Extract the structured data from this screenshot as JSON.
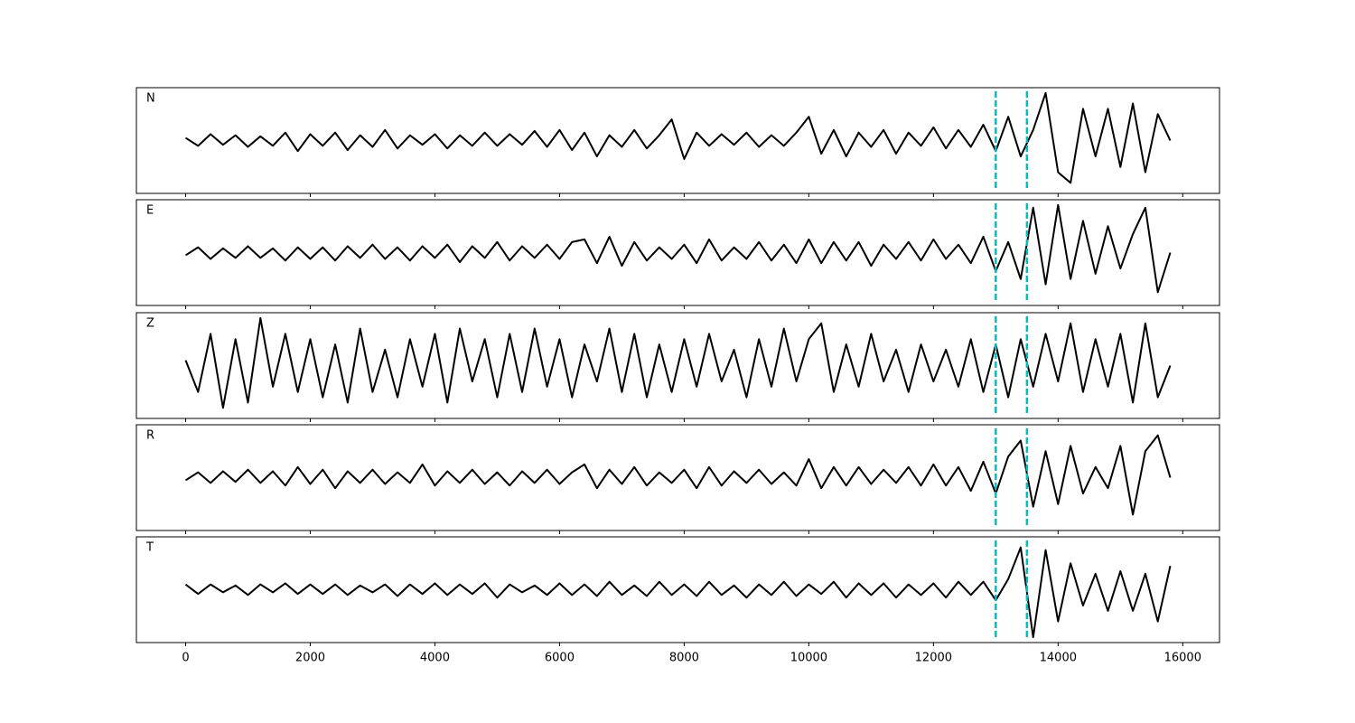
{
  "chart_data": [
    {
      "type": "line",
      "title": "N",
      "color": "#000000",
      "xlim": [
        -790,
        16590
      ],
      "ylim": [
        -1,
        1
      ],
      "vlines": [
        13000,
        13500
      ],
      "vline_color": "#00bfbf",
      "x": [
        0,
        200,
        400,
        600,
        800,
        1000,
        1200,
        1400,
        1600,
        1800,
        2000,
        2200,
        2400,
        2600,
        2800,
        3000,
        3200,
        3400,
        3600,
        3800,
        4000,
        4200,
        4400,
        4600,
        4800,
        5000,
        5200,
        5400,
        5600,
        5800,
        6000,
        6200,
        6400,
        6600,
        6800,
        7000,
        7200,
        7400,
        7600,
        7800,
        8000,
        8200,
        8400,
        8600,
        8800,
        9000,
        9200,
        9400,
        9600,
        9800,
        10000,
        10200,
        10400,
        10600,
        10800,
        11000,
        11200,
        11400,
        11600,
        11800,
        12000,
        12200,
        12400,
        12600,
        12800,
        13000,
        13200,
        13400,
        13600,
        13800,
        14000,
        14200,
        14400,
        14600,
        14800,
        15000,
        15200,
        15400,
        15600,
        15800
      ],
      "values": [
        0.05,
        -0.1,
        0.12,
        -0.08,
        0.1,
        -0.12,
        0.08,
        -0.1,
        0.15,
        -0.2,
        0.12,
        -0.1,
        0.15,
        -0.18,
        0.1,
        -0.12,
        0.2,
        -0.15,
        0.1,
        -0.08,
        0.12,
        -0.15,
        0.1,
        -0.1,
        0.15,
        -0.1,
        0.12,
        -0.08,
        0.18,
        -0.12,
        0.2,
        -0.18,
        0.15,
        -0.3,
        0.1,
        -0.12,
        0.2,
        -0.15,
        0.1,
        0.4,
        -0.35,
        0.15,
        -0.1,
        0.12,
        -0.08,
        0.15,
        -0.12,
        0.1,
        -0.1,
        0.15,
        0.45,
        -0.25,
        0.2,
        -0.3,
        0.15,
        -0.12,
        0.2,
        -0.25,
        0.15,
        -0.1,
        0.25,
        -0.15,
        0.2,
        -0.12,
        0.3,
        -0.2,
        0.45,
        -0.3,
        0.2,
        0.9,
        -0.6,
        -0.8,
        0.6,
        -0.3,
        0.6,
        -0.5,
        0.7,
        -0.6,
        0.5,
        0.0
      ]
    },
    {
      "type": "line",
      "title": "E",
      "color": "#000000",
      "xlim": [
        -790,
        16590
      ],
      "ylim": [
        -1,
        1
      ],
      "vlines": [
        13000,
        13500
      ],
      "vline_color": "#00bfbf",
      "x": [
        0,
        200,
        400,
        600,
        800,
        1000,
        1200,
        1400,
        1600,
        1800,
        2000,
        2200,
        2400,
        2600,
        2800,
        3000,
        3200,
        3400,
        3600,
        3800,
        4000,
        4200,
        4400,
        4600,
        4800,
        5000,
        5200,
        5400,
        5600,
        5800,
        6000,
        6200,
        6400,
        6600,
        6800,
        7000,
        7200,
        7400,
        7600,
        7800,
        8000,
        8200,
        8400,
        8600,
        8800,
        9000,
        9200,
        9400,
        9600,
        9800,
        10000,
        10200,
        10400,
        10600,
        10800,
        11000,
        11200,
        11400,
        11600,
        11800,
        12000,
        12200,
        12400,
        12600,
        12800,
        13000,
        13200,
        13400,
        13600,
        13800,
        14000,
        14200,
        14400,
        14600,
        14800,
        15000,
        15200,
        15400,
        15600,
        15800
      ],
      "values": [
        -0.05,
        0.1,
        -0.12,
        0.08,
        -0.1,
        0.12,
        -0.1,
        0.08,
        -0.15,
        0.1,
        -0.12,
        0.1,
        -0.15,
        0.12,
        -0.1,
        0.15,
        -0.12,
        0.1,
        -0.15,
        0.12,
        -0.1,
        0.15,
        -0.18,
        0.12,
        -0.1,
        0.2,
        -0.15,
        0.12,
        -0.1,
        0.15,
        -0.12,
        0.2,
        0.25,
        -0.2,
        0.3,
        -0.25,
        0.2,
        -0.15,
        0.1,
        -0.12,
        0.15,
        -0.2,
        0.25,
        -0.15,
        0.1,
        -0.12,
        0.2,
        -0.15,
        0.15,
        -0.2,
        0.25,
        -0.2,
        0.2,
        -0.15,
        0.2,
        -0.25,
        0.15,
        -0.12,
        0.2,
        -0.15,
        0.25,
        -0.12,
        0.15,
        -0.2,
        0.3,
        -0.35,
        0.2,
        -0.5,
        0.85,
        -0.6,
        0.9,
        -0.5,
        0.6,
        -0.4,
        0.5,
        -0.3,
        0.35,
        0.85,
        -0.75,
        0.0
      ]
    },
    {
      "type": "line",
      "title": "Z",
      "color": "#000000",
      "xlim": [
        -790,
        16590
      ],
      "ylim": [
        -1,
        1
      ],
      "vlines": [
        13000,
        13500
      ],
      "vline_color": "#00bfbf",
      "x": [
        0,
        200,
        400,
        600,
        800,
        1000,
        1200,
        1400,
        1600,
        1800,
        2000,
        2200,
        2400,
        2600,
        2800,
        3000,
        3200,
        3400,
        3600,
        3800,
        4000,
        4200,
        4400,
        4600,
        4800,
        5000,
        5200,
        5400,
        5600,
        5800,
        6000,
        6200,
        6400,
        6600,
        6800,
        7000,
        7200,
        7400,
        7600,
        7800,
        8000,
        8200,
        8400,
        8600,
        8800,
        9000,
        9200,
        9400,
        9600,
        9800,
        10000,
        10200,
        10400,
        10600,
        10800,
        11000,
        11200,
        11400,
        11600,
        11800,
        12000,
        12200,
        12400,
        12600,
        12800,
        13000,
        13200,
        13400,
        13600,
        13800,
        14000,
        14200,
        14400,
        14600,
        14800,
        15000,
        15200,
        15400,
        15600,
        15800
      ],
      "values": [
        0.1,
        -0.5,
        0.6,
        -0.8,
        0.5,
        -0.7,
        0.9,
        -0.4,
        0.6,
        -0.5,
        0.5,
        -0.6,
        0.4,
        -0.7,
        0.7,
        -0.5,
        0.3,
        -0.6,
        0.5,
        -0.4,
        0.6,
        -0.7,
        0.7,
        -0.3,
        0.5,
        -0.6,
        0.6,
        -0.5,
        0.7,
        -0.4,
        0.5,
        -0.6,
        0.4,
        -0.3,
        0.7,
        -0.5,
        0.6,
        -0.6,
        0.4,
        -0.5,
        0.5,
        -0.4,
        0.6,
        -0.3,
        0.3,
        -0.6,
        0.5,
        -0.4,
        0.7,
        -0.3,
        0.5,
        0.8,
        -0.5,
        0.4,
        -0.4,
        0.6,
        -0.3,
        0.3,
        -0.5,
        0.4,
        -0.3,
        0.3,
        -0.4,
        0.5,
        -0.5,
        0.4,
        -0.6,
        0.5,
        -0.4,
        0.6,
        -0.3,
        0.8,
        -0.5,
        0.5,
        -0.4,
        0.6,
        -0.7,
        0.8,
        -0.6,
        0.0
      ]
    },
    {
      "type": "line",
      "title": "R",
      "color": "#000000",
      "xlim": [
        -790,
        16590
      ],
      "ylim": [
        -1,
        1
      ],
      "vlines": [
        13000,
        13500
      ],
      "vline_color": "#00bfbf",
      "x": [
        0,
        200,
        400,
        600,
        800,
        1000,
        1200,
        1400,
        1600,
        1800,
        2000,
        2200,
        2400,
        2600,
        2800,
        3000,
        3200,
        3400,
        3600,
        3800,
        4000,
        4200,
        4400,
        4600,
        4800,
        5000,
        5200,
        5400,
        5600,
        5800,
        6000,
        6200,
        6400,
        6600,
        6800,
        7000,
        7200,
        7400,
        7600,
        7800,
        8000,
        8200,
        8400,
        8600,
        8800,
        9000,
        9200,
        9400,
        9600,
        9800,
        10000,
        10200,
        10400,
        10600,
        10800,
        11000,
        11200,
        11400,
        11600,
        11800,
        12000,
        12200,
        12400,
        12600,
        12800,
        13000,
        13200,
        13400,
        13600,
        13800,
        14000,
        14200,
        14400,
        14600,
        14800,
        15000,
        15200,
        15400,
        15600,
        15800
      ],
      "values": [
        -0.05,
        0.1,
        -0.1,
        0.12,
        -0.08,
        0.15,
        -0.1,
        0.12,
        -0.15,
        0.2,
        -0.12,
        0.15,
        -0.2,
        0.12,
        -0.1,
        0.15,
        -0.12,
        0.1,
        -0.1,
        0.25,
        -0.15,
        0.12,
        -0.1,
        0.15,
        -0.12,
        0.1,
        -0.15,
        0.12,
        -0.1,
        0.15,
        -0.12,
        0.1,
        0.25,
        -0.2,
        0.15,
        -0.12,
        0.2,
        -0.15,
        0.1,
        -0.1,
        0.15,
        -0.2,
        0.2,
        -0.15,
        0.12,
        -0.1,
        0.15,
        -0.12,
        0.1,
        -0.15,
        0.35,
        -0.2,
        0.2,
        -0.15,
        0.2,
        -0.12,
        0.15,
        -0.1,
        0.2,
        -0.15,
        0.25,
        -0.15,
        0.2,
        -0.25,
        0.3,
        -0.3,
        0.4,
        0.7,
        -0.55,
        0.5,
        -0.5,
        0.6,
        -0.3,
        0.2,
        -0.2,
        0.6,
        -0.7,
        0.5,
        0.8,
        0.0
      ]
    },
    {
      "type": "line",
      "title": "T",
      "color": "#000000",
      "xlim": [
        -790,
        16590
      ],
      "ylim": [
        -1,
        1
      ],
      "vlines": [
        13000,
        13500
      ],
      "vline_color": "#00bfbf",
      "xticks": [
        0,
        2000,
        4000,
        6000,
        8000,
        10000,
        12000,
        14000,
        16000
      ],
      "x": [
        0,
        200,
        400,
        600,
        800,
        1000,
        1200,
        1400,
        1600,
        1800,
        2000,
        2200,
        2400,
        2600,
        2800,
        3000,
        3200,
        3400,
        3600,
        3800,
        4000,
        4200,
        4400,
        4600,
        4800,
        5000,
        5200,
        5400,
        5600,
        5800,
        6000,
        6200,
        6400,
        6600,
        6800,
        7000,
        7200,
        7400,
        7600,
        7800,
        8000,
        8200,
        8400,
        8600,
        8800,
        9000,
        9200,
        9400,
        9600,
        9800,
        10000,
        10200,
        10400,
        10600,
        10800,
        11000,
        11200,
        11400,
        11600,
        11800,
        12000,
        12200,
        12400,
        12600,
        12800,
        13000,
        13200,
        13400,
        13600,
        13800,
        14000,
        14200,
        14400,
        14600,
        14800,
        15000,
        15200,
        15400,
        15600,
        15800
      ],
      "values": [
        0.1,
        -0.08,
        0.1,
        -0.05,
        0.08,
        -0.1,
        0.1,
        -0.05,
        0.12,
        -0.08,
        0.1,
        -0.08,
        0.1,
        -0.1,
        0.08,
        -0.05,
        0.1,
        -0.12,
        0.1,
        -0.08,
        0.12,
        -0.1,
        0.1,
        -0.08,
        0.12,
        -0.15,
        0.1,
        -0.05,
        0.08,
        -0.1,
        0.12,
        -0.1,
        0.1,
        -0.12,
        0.15,
        -0.1,
        0.08,
        -0.12,
        0.15,
        -0.1,
        0.1,
        -0.12,
        0.15,
        -0.1,
        0.08,
        -0.15,
        0.1,
        -0.1,
        0.15,
        -0.12,
        0.1,
        -0.08,
        0.15,
        -0.15,
        0.12,
        -0.1,
        0.12,
        -0.15,
        0.1,
        -0.1,
        0.12,
        -0.15,
        0.15,
        -0.1,
        0.15,
        -0.2,
        0.2,
        0.8,
        -0.9,
        0.75,
        -0.6,
        0.5,
        -0.3,
        0.3,
        -0.4,
        0.35,
        -0.4,
        0.3,
        -0.6,
        0.45
      ]
    }
  ]
}
